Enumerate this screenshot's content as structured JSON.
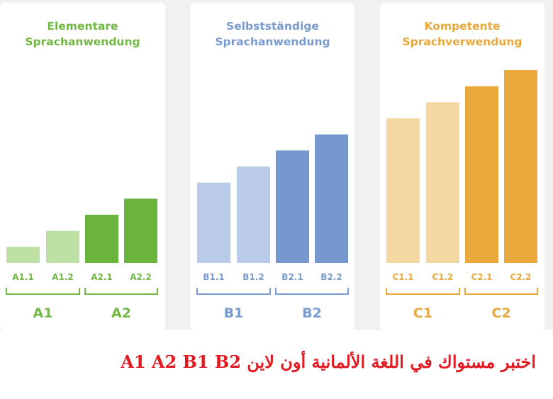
{
  "chart_data": [
    {
      "type": "bar",
      "title_lines": [
        "Elementare",
        "Sprachanwendung"
      ],
      "categories": [
        "A1.1",
        "A1.2",
        "A2.1",
        "A2.2"
      ],
      "values": [
        1,
        2,
        3,
        4
      ],
      "ylim": [
        0,
        12
      ],
      "groups": [
        {
          "label": "A1",
          "members": [
            "A1.1",
            "A1.2"
          ]
        },
        {
          "label": "A2",
          "members": [
            "A2.1",
            "A2.2"
          ]
        }
      ],
      "colors": {
        "title": "#72b845",
        "bars": [
          "#bfe0a4",
          "#bfe0a4",
          "#6ab43e",
          "#6ab43e"
        ],
        "labels": "#72b845"
      }
    },
    {
      "type": "bar",
      "title_lines": [
        "Selbstständige",
        "Sprachanwendung"
      ],
      "categories": [
        "B1.1",
        "B1.2",
        "B2.1",
        "B2.2"
      ],
      "values": [
        5,
        6,
        7,
        8
      ],
      "ylim": [
        0,
        12
      ],
      "groups": [
        {
          "label": "B1",
          "members": [
            "B1.1",
            "B1.2"
          ]
        },
        {
          "label": "B2",
          "members": [
            "B2.1",
            "B2.2"
          ]
        }
      ],
      "colors": {
        "title": "#7a9bd0",
        "bars": [
          "#b9cbe8",
          "#b9cbe8",
          "#7698cf",
          "#7698cf"
        ],
        "labels": "#7a9bd0"
      }
    },
    {
      "type": "bar",
      "title_lines": [
        "Kompetente",
        "Sprachverwendung"
      ],
      "categories": [
        "C1.1",
        "C1.2",
        "C2.1",
        "C2.2"
      ],
      "values": [
        9,
        10,
        11,
        12
      ],
      "ylim": [
        0,
        12
      ],
      "groups": [
        {
          "label": "C1",
          "members": [
            "C1.1",
            "C1.2"
          ]
        },
        {
          "label": "C2",
          "members": [
            "C2.1",
            "C2.2"
          ]
        }
      ],
      "colors": {
        "title": "#e8a83c",
        "bars": [
          "#f5d7a1",
          "#f5d7a1",
          "#e8a83c",
          "#e8a83c"
        ],
        "labels": "#e8a83c"
      }
    }
  ],
  "caption": {
    "text": "اختبر مستواك في اللغة الألمانية أون لاين A1 A2 B1 B2",
    "color": "#e21b22"
  }
}
